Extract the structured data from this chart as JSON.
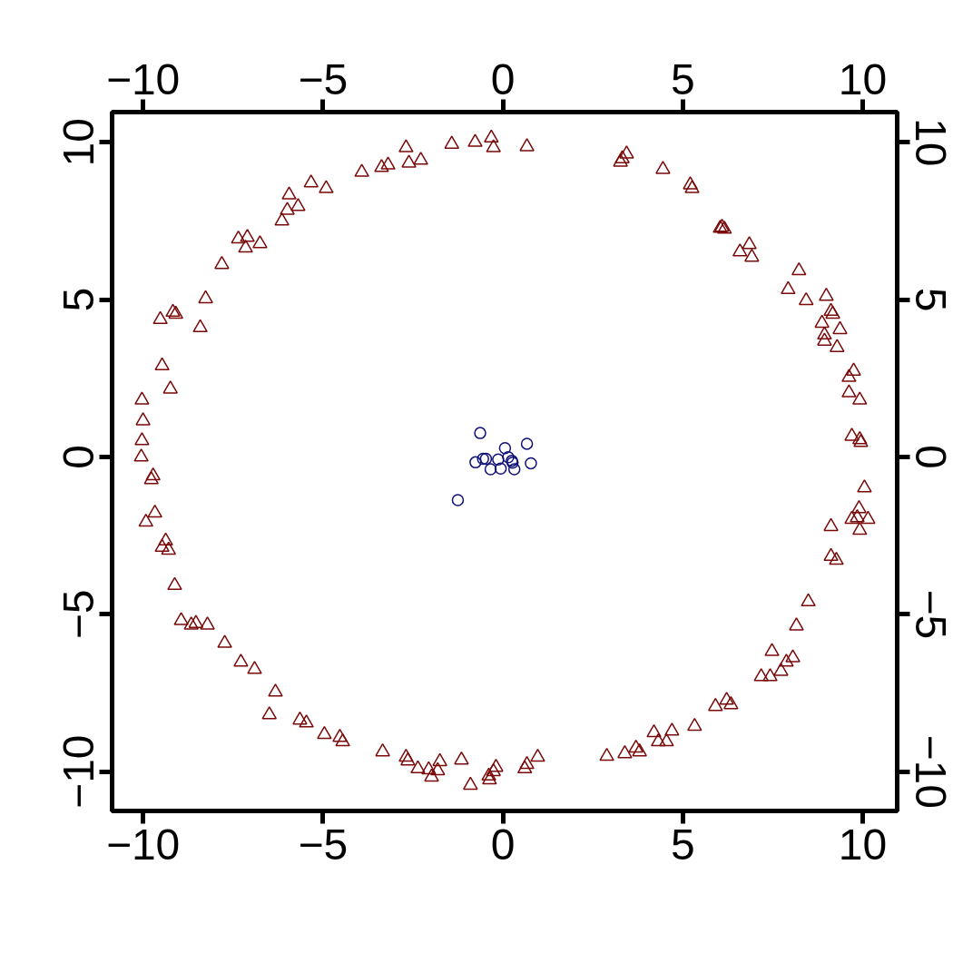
{
  "chart_data": {
    "type": "scatter",
    "xlim": [
      -10.86,
      10.96
    ],
    "ylim": [
      -11.25,
      10.96
    ],
    "xticks": [
      -10,
      -5,
      0,
      5,
      10
    ],
    "yticks": [
      -10,
      -5,
      0,
      5,
      10
    ],
    "x2lim": [
      -10.86,
      10.96
    ],
    "x2ticks": [
      -10,
      -5,
      0,
      5,
      10
    ],
    "y2lim": [
      -11.25,
      10.96
    ],
    "y2ticks": [
      -10,
      -5,
      0,
      5,
      10
    ],
    "grid": false,
    "series": [
      {
        "color": "#7a0a0a",
        "marker": "triangle",
        "x": [
          -2.69,
          -2.61,
          -2.28,
          -3.37,
          -3.19,
          -3.92,
          -1.42,
          -0.77,
          -0.32,
          -0.26,
          0.67,
          3.27,
          3.32,
          3.44,
          4.45,
          5.21,
          5.26,
          6.04,
          6.09,
          6.16,
          6.85,
          6.59,
          6.92,
          8.23,
          7.93,
          8.43,
          8.99,
          9.12,
          9.17,
          8.87,
          8.94,
          8.94,
          9.37,
          9.29,
          9.62,
          9.62,
          9.75,
          9.92,
          9.7,
          9.92,
          9.95,
          10.05,
          9.7,
          9.9,
          10.15,
          9.92,
          9.85,
          9.12,
          9.12,
          9.27,
          8.49,
          8.16,
          7.48,
          7.18,
          7.43,
          7.73,
          7.88,
          8.06,
          6.34,
          6.22,
          5.91,
          5.33,
          4.7,
          4.32,
          4.2,
          4.55,
          3.8,
          3.7,
          3.39,
          2.89,
          0.97,
          0.67,
          0.61,
          -0.19,
          -0.26,
          -0.39,
          -0.37,
          -0.9,
          -1.15,
          -1.75,
          -1.81,
          -1.98,
          -2.06,
          -2.36,
          -3.34,
          -2.64,
          -2.69,
          -4.45,
          -4.53,
          -4.96,
          -5.46,
          -5.64,
          -6.32,
          -6.49,
          -6.9,
          -7.28,
          -7.73,
          -8.21,
          -8.53,
          -8.66,
          -8.94,
          -9.12,
          -9.29,
          -9.37,
          -9.47,
          -9.67,
          -9.92,
          -9.77,
          -9.72,
          -10.05,
          -10.03,
          -10.0,
          -10.03,
          -9.24,
          -9.47,
          -9.52,
          -9.17,
          -9.09,
          -8.41,
          -8.26,
          -7.81,
          -7.35,
          -7.1,
          -7.15,
          -6.75,
          -6.14,
          -5.99,
          -5.94,
          -5.69,
          -5.33,
          -4.91
        ],
        "values": [
          9.83,
          9.34,
          9.43,
          9.2,
          9.28,
          9.05,
          9.94,
          10.0,
          10.14,
          9.83,
          9.86,
          9.37,
          9.48,
          9.63,
          9.14,
          8.65,
          8.53,
          7.27,
          7.3,
          7.24,
          6.75,
          6.52,
          6.35,
          5.92,
          5.32,
          4.97,
          5.11,
          4.63,
          4.54,
          4.25,
          3.88,
          3.68,
          4.05,
          3.48,
          2.04,
          2.53,
          2.73,
          1.81,
          0.66,
          0.55,
          0.46,
          -0.98,
          -1.98,
          -1.64,
          -1.98,
          -2.33,
          -1.93,
          -2.21,
          -3.16,
          -3.28,
          -4.6,
          -5.37,
          -6.18,
          -6.98,
          -6.98,
          -6.81,
          -6.52,
          -6.38,
          -7.87,
          -7.73,
          -7.93,
          -8.56,
          -8.71,
          -9.05,
          -8.76,
          -9.05,
          -9.37,
          -9.25,
          -9.43,
          -9.51,
          -9.54,
          -9.77,
          -9.91,
          -9.86,
          -10.0,
          -10.14,
          -10.26,
          -10.43,
          -9.63,
          -9.68,
          -9.97,
          -10.17,
          -9.94,
          -9.91,
          -9.37,
          -9.66,
          -9.54,
          -9.05,
          -8.91,
          -8.82,
          -8.45,
          -8.36,
          -7.47,
          -8.19,
          -6.75,
          -6.52,
          -5.92,
          -5.34,
          -5.29,
          -5.34,
          -5.2,
          -4.08,
          -2.96,
          -2.67,
          -2.87,
          -1.78,
          -2.07,
          -0.72,
          -0.6,
          0.0,
          0.52,
          1.15,
          1.81,
          2.16,
          2.9,
          4.37,
          4.6,
          4.54,
          4.11,
          5.03,
          6.12,
          6.93,
          6.98,
          6.64,
          6.78,
          7.5,
          7.84,
          8.33,
          7.96,
          8.71,
          8.53
        ]
      },
      {
        "color": "#10107a",
        "marker": "circle",
        "x": [
          -0.63,
          0.67,
          0.06,
          -0.76,
          -0.55,
          -0.47,
          -0.13,
          0.15,
          0.25,
          0.27,
          0.78,
          -0.34,
          -0.06,
          0.32,
          -1.25
        ],
        "values": [
          0.76,
          0.42,
          0.28,
          -0.17,
          -0.06,
          -0.06,
          -0.08,
          -0.01,
          -0.12,
          -0.18,
          -0.2,
          -0.39,
          -0.37,
          -0.39,
          -1.37
        ]
      }
    ]
  }
}
